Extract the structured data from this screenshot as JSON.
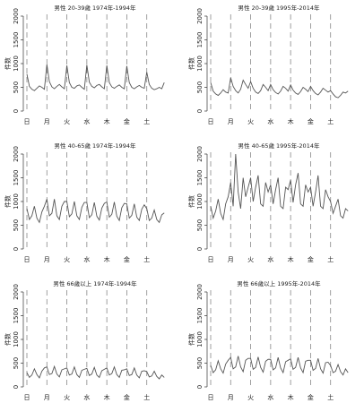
{
  "chart_data": [
    {
      "type": "line",
      "title": "男性 20-39歳 1974年-1994年",
      "ylabel": "件数",
      "ylim": [
        0,
        2000
      ],
      "yticks": [
        0,
        500,
        1000,
        1500,
        2000
      ],
      "grid": false,
      "color": "#555555",
      "categories": [
        "日",
        null,
        null,
        null,
        null,
        null,
        null,
        null,
        "月",
        null,
        null,
        null,
        null,
        null,
        null,
        null,
        "火",
        null,
        null,
        null,
        null,
        null,
        null,
        null,
        "水",
        null,
        null,
        null,
        null,
        null,
        null,
        null,
        "木",
        null,
        null,
        null,
        null,
        null,
        null,
        null,
        "金",
        null,
        null,
        null,
        null,
        null,
        null,
        null,
        "土",
        null,
        null,
        null,
        null,
        null,
        null,
        null
      ],
      "values": [
        780,
        520,
        460,
        430,
        480,
        530,
        500,
        460,
        980,
        620,
        510,
        470,
        520,
        560,
        510,
        470,
        960,
        600,
        500,
        480,
        530,
        550,
        500,
        460,
        970,
        610,
        520,
        490,
        540,
        560,
        510,
        470,
        960,
        600,
        510,
        480,
        520,
        550,
        500,
        470,
        950,
        600,
        500,
        470,
        510,
        540,
        500,
        480,
        820,
        560,
        480,
        450,
        470,
        500,
        470,
        600
      ]
    },
    {
      "type": "line",
      "title": "男性 20-39歳 1995年-2014年",
      "ylabel": "件数",
      "ylim": [
        0,
        2000
      ],
      "yticks": [
        0,
        500,
        1000,
        1500,
        2000
      ],
      "grid": false,
      "color": "#555555",
      "categories": [
        "日",
        null,
        null,
        null,
        null,
        null,
        null,
        null,
        "月",
        null,
        null,
        null,
        null,
        null,
        null,
        null,
        "火",
        null,
        null,
        null,
        null,
        null,
        null,
        null,
        "水",
        null,
        null,
        null,
        null,
        null,
        null,
        null,
        "木",
        null,
        null,
        null,
        null,
        null,
        null,
        null,
        "金",
        null,
        null,
        null,
        null,
        null,
        null,
        null,
        "土",
        null,
        null,
        null,
        null,
        null,
        null,
        null
      ],
      "values": [
        600,
        420,
        360,
        330,
        380,
        450,
        400,
        380,
        700,
        520,
        430,
        380,
        460,
        650,
        560,
        480,
        620,
        480,
        400,
        370,
        430,
        560,
        500,
        430,
        560,
        450,
        390,
        360,
        420,
        520,
        480,
        420,
        550,
        440,
        380,
        350,
        410,
        500,
        460,
        410,
        520,
        430,
        370,
        340,
        400,
        480,
        440,
        400,
        430,
        360,
        300,
        280,
        330,
        400,
        380,
        420
      ]
    },
    {
      "type": "line",
      "title": "男性 40-65歳 1974年-1994年",
      "ylabel": "件数",
      "ylim": [
        0,
        2000
      ],
      "yticks": [
        0,
        500,
        1000,
        1500,
        2000
      ],
      "grid": false,
      "color": "#555555",
      "categories": [
        "日",
        null,
        null,
        null,
        null,
        null,
        null,
        null,
        "月",
        null,
        null,
        null,
        null,
        null,
        null,
        null,
        "火",
        null,
        null,
        null,
        null,
        null,
        null,
        null,
        "水",
        null,
        null,
        null,
        null,
        null,
        null,
        null,
        "木",
        null,
        null,
        null,
        null,
        null,
        null,
        null,
        "金",
        null,
        null,
        null,
        null,
        null,
        null,
        null,
        "土",
        null,
        null,
        null,
        null,
        null,
        null,
        null
      ],
      "values": [
        850,
        620,
        700,
        900,
        650,
        560,
        780,
        900,
        1050,
        700,
        750,
        1050,
        700,
        620,
        900,
        1000,
        1000,
        680,
        740,
        1000,
        700,
        620,
        880,
        980,
        980,
        660,
        720,
        980,
        690,
        610,
        860,
        960,
        990,
        670,
        730,
        990,
        690,
        600,
        870,
        960,
        950,
        650,
        710,
        950,
        670,
        600,
        840,
        930,
        850,
        600,
        650,
        820,
        620,
        560,
        720,
        760
      ]
    },
    {
      "type": "line",
      "title": "男性 40-65歳 1995年-2014年",
      "ylabel": "件数",
      "ylim": [
        0,
        2000
      ],
      "yticks": [
        0,
        500,
        1000,
        1500,
        2000
      ],
      "grid": false,
      "color": "#555555",
      "categories": [
        "日",
        null,
        null,
        null,
        null,
        null,
        null,
        null,
        "月",
        null,
        null,
        null,
        null,
        null,
        null,
        null,
        "火",
        null,
        null,
        null,
        null,
        null,
        null,
        null,
        "水",
        null,
        null,
        null,
        null,
        null,
        null,
        null,
        "木",
        null,
        null,
        null,
        null,
        null,
        null,
        null,
        "金",
        null,
        null,
        null,
        null,
        null,
        null,
        null,
        "土",
        null,
        null,
        null,
        null,
        null,
        null,
        null
      ],
      "values": [
        900,
        650,
        800,
        1050,
        750,
        620,
        950,
        1100,
        1400,
        900,
        2000,
        1200,
        850,
        1500,
        1100,
        1300,
        1500,
        1000,
        1300,
        1550,
        950,
        900,
        1400,
        1200,
        1350,
        950,
        1250,
        1500,
        900,
        850,
        1300,
        1250,
        1450,
        980,
        1350,
        1600,
        950,
        900,
        1350,
        1200,
        1300,
        900,
        1200,
        1550,
        900,
        850,
        1250,
        1100,
        1000,
        750,
        900,
        1050,
        700,
        650,
        850,
        800
      ]
    },
    {
      "type": "line",
      "title": "男性 66歳以上 1974年-1994年",
      "ylabel": "件数",
      "ylim": [
        0,
        2000
      ],
      "yticks": [
        0,
        500,
        1000,
        1500,
        2000
      ],
      "grid": false,
      "color": "#555555",
      "categories": [
        "日",
        null,
        null,
        null,
        null,
        null,
        null,
        null,
        "月",
        null,
        null,
        null,
        null,
        null,
        null,
        null,
        "火",
        null,
        null,
        null,
        null,
        null,
        null,
        null,
        "水",
        null,
        null,
        null,
        null,
        null,
        null,
        null,
        "木",
        null,
        null,
        null,
        null,
        null,
        null,
        null,
        "金",
        null,
        null,
        null,
        null,
        null,
        null,
        null,
        "土",
        null,
        null,
        null,
        null,
        null,
        null,
        null
      ],
      "values": [
        300,
        200,
        250,
        380,
        260,
        190,
        330,
        400,
        420,
        260,
        280,
        430,
        270,
        210,
        360,
        380,
        400,
        250,
        270,
        420,
        260,
        200,
        350,
        370,
        390,
        240,
        270,
        410,
        250,
        200,
        340,
        370,
        400,
        250,
        280,
        420,
        260,
        200,
        350,
        360,
        380,
        240,
        260,
        400,
        250,
        190,
        330,
        340,
        320,
        210,
        230,
        330,
        220,
        170,
        250,
        200
      ]
    },
    {
      "type": "line",
      "title": "男性 66歳以上 1995年-2014年",
      "ylabel": "件数",
      "ylim": [
        0,
        2000
      ],
      "yticks": [
        0,
        500,
        1000,
        1500,
        2000
      ],
      "grid": false,
      "color": "#555555",
      "categories": [
        "日",
        null,
        null,
        null,
        null,
        null,
        null,
        null,
        "月",
        null,
        null,
        null,
        null,
        null,
        null,
        null,
        "火",
        null,
        null,
        null,
        null,
        null,
        null,
        null,
        "水",
        null,
        null,
        null,
        null,
        null,
        null,
        null,
        "木",
        null,
        null,
        null,
        null,
        null,
        null,
        null,
        "金",
        null,
        null,
        null,
        null,
        null,
        null,
        null,
        "土",
        null,
        null,
        null,
        null,
        null,
        null,
        null
      ],
      "values": [
        450,
        300,
        360,
        550,
        380,
        290,
        480,
        560,
        620,
        380,
        420,
        650,
        420,
        320,
        560,
        600,
        600,
        370,
        410,
        630,
        410,
        310,
        540,
        580,
        580,
        360,
        400,
        620,
        400,
        300,
        530,
        560,
        590,
        370,
        410,
        620,
        400,
        300,
        540,
        560,
        560,
        350,
        390,
        600,
        380,
        290,
        510,
        520,
        450,
        300,
        330,
        470,
        320,
        250,
        380,
        300
      ]
    }
  ]
}
